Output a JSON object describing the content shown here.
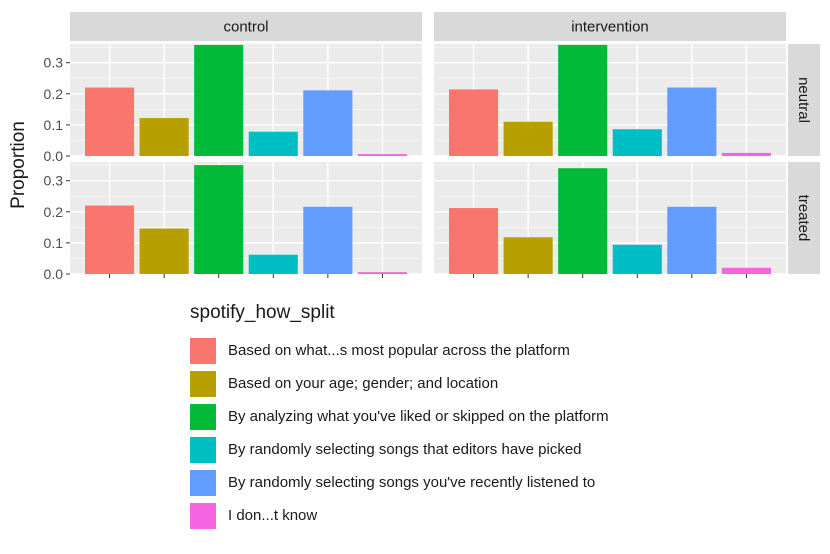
{
  "chart_data": {
    "type": "bar",
    "ylabel": "Proportion",
    "ylim": [
      0,
      0.36
    ],
    "yticks": [
      "0.0",
      "0.1",
      "0.2",
      "0.3"
    ],
    "ytick_values": [
      0,
      0.1,
      0.2,
      0.3
    ],
    "grid": true,
    "legend_position": "bottom",
    "legend_title": "spotify_how_split",
    "columns": [
      "control",
      "intervention"
    ],
    "rows": [
      "neutral",
      "treated"
    ],
    "categories": [
      "Based on what...s most popular across the platform",
      "Based on your age; gender; and location",
      "By analyzing what you've liked or skipped on the platform",
      "By randomly selecting songs that editors have picked",
      "By randomly selecting songs you've recently listened to",
      "I don...t know"
    ],
    "colors": [
      "#F8766D",
      "#B79F00",
      "#00BA38",
      "#00BFC4",
      "#619CFF",
      "#F564E3"
    ],
    "panels": [
      {
        "column": "control",
        "row": "neutral",
        "values": [
          0.22,
          0.122,
          0.357,
          0.078,
          0.211,
          0.006
        ]
      },
      {
        "column": "intervention",
        "row": "neutral",
        "values": [
          0.214,
          0.11,
          0.357,
          0.086,
          0.22,
          0.01
        ]
      },
      {
        "column": "control",
        "row": "treated",
        "values": [
          0.22,
          0.146,
          0.35,
          0.062,
          0.216,
          0.006
        ]
      },
      {
        "column": "intervention",
        "row": "treated",
        "values": [
          0.212,
          0.118,
          0.34,
          0.094,
          0.216,
          0.02
        ]
      }
    ]
  }
}
